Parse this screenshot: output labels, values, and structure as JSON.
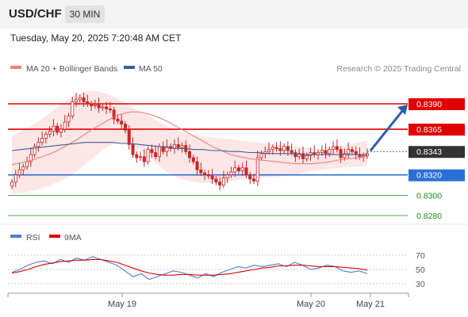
{
  "header": {
    "symbol": "USD/CHF",
    "timeframe": "30 MIN",
    "datetime": "Tuesday, May 20, 2025 7:20:48 AM CET"
  },
  "legend": {
    "ma20_bb": "MA 20 + Bollinger Bands",
    "ma50": "MA 50",
    "credit": "Research © 2025 Trading Central",
    "rsi": "RSI",
    "ma9": "9MA"
  },
  "colors": {
    "resistance": "#e00000",
    "support": "#2b6fd6",
    "target": "#1a8a1a",
    "current": "#333333",
    "ma20": "#f08080",
    "band_fill": "#fde2e2",
    "ma50": "#3a5f9a",
    "candle": "#c62828",
    "rsi": "#4a7fd4",
    "rsi_ma": "#e00000",
    "arrow": "#2a5fa8"
  },
  "chart_data": [
    {
      "type": "candlestick",
      "title": "USD/CHF 30 MIN",
      "x_ticks": [
        "May 19",
        "May 20",
        "May 21"
      ],
      "price_levels": [
        {
          "label": "0.8390",
          "value": 0.839,
          "kind": "resistance"
        },
        {
          "label": "0.8365",
          "value": 0.8365,
          "kind": "resistance"
        },
        {
          "label": "0.8343",
          "value": 0.8343,
          "kind": "current"
        },
        {
          "label": "0.8320",
          "value": 0.832,
          "kind": "support"
        },
        {
          "label": "0.8300",
          "value": 0.83,
          "kind": "target"
        },
        {
          "label": "0.8280",
          "value": 0.828,
          "kind": "target"
        }
      ],
      "arrow": {
        "from": 0.8343,
        "to": 0.839
      },
      "close": [
        0.8313,
        0.832,
        0.8325,
        0.8328,
        0.8333,
        0.834,
        0.8348,
        0.8352,
        0.8356,
        0.836,
        0.8363,
        0.8368,
        0.8362,
        0.8365,
        0.8372,
        0.8378,
        0.8392,
        0.8394,
        0.8396,
        0.8392,
        0.839,
        0.8388,
        0.8389,
        0.8386,
        0.8387,
        0.8385,
        0.8384,
        0.8375,
        0.8373,
        0.837,
        0.8364,
        0.835,
        0.834,
        0.8337,
        0.8338,
        0.8333,
        0.8345,
        0.8342,
        0.8338,
        0.8348,
        0.8343,
        0.8348,
        0.8346,
        0.835,
        0.8347,
        0.8349,
        0.8343,
        0.8337,
        0.8333,
        0.8325,
        0.8322,
        0.832,
        0.8319,
        0.8316,
        0.8313,
        0.831,
        0.8317,
        0.832,
        0.8323,
        0.8327,
        0.8324,
        0.8327,
        0.832,
        0.8316,
        0.8314,
        0.8337,
        0.8341,
        0.8343,
        0.8345,
        0.8347,
        0.8346,
        0.8344,
        0.8348,
        0.8344,
        0.8342,
        0.8338,
        0.8341,
        0.8336,
        0.8339,
        0.8342,
        0.834,
        0.8342,
        0.8344,
        0.8341,
        0.8345,
        0.8348,
        0.8345,
        0.8337,
        0.8341,
        0.8345,
        0.8343,
        0.834,
        0.8338,
        0.8339,
        0.8341
      ],
      "ma20": [
        0.833,
        0.8332,
        0.8334,
        0.8337,
        0.834,
        0.8344,
        0.8349,
        0.8354,
        0.836,
        0.8366,
        0.8371,
        0.8376,
        0.838,
        0.8382,
        0.8382,
        0.838,
        0.8377,
        0.8373,
        0.8368,
        0.8363,
        0.8358,
        0.8353,
        0.8348,
        0.8344,
        0.834,
        0.8338,
        0.8336,
        0.8335,
        0.8334,
        0.8333,
        0.8332,
        0.8331,
        0.8331,
        0.8331,
        0.8332,
        0.8333,
        0.8335,
        0.8336,
        0.8337,
        0.8338
      ],
      "bb_upper": [
        0.8358,
        0.8363,
        0.8368,
        0.8373,
        0.838,
        0.8387,
        0.8394,
        0.8399,
        0.8402,
        0.8403,
        0.8401,
        0.8398,
        0.8393,
        0.8388,
        0.8383,
        0.8378,
        0.8373,
        0.8368,
        0.8364,
        0.8361,
        0.8359,
        0.8358,
        0.8357,
        0.8356,
        0.8355,
        0.8354,
        0.8353,
        0.8352,
        0.8351,
        0.835,
        0.8349,
        0.8348,
        0.8347,
        0.8346,
        0.8345,
        0.8346,
        0.8348,
        0.835,
        0.8352,
        0.8354
      ],
      "bb_lower": [
        0.8302,
        0.8302,
        0.8304,
        0.8306,
        0.8309,
        0.8313,
        0.8317,
        0.8323,
        0.833,
        0.8338,
        0.8345,
        0.835,
        0.8352,
        0.835,
        0.8345,
        0.8338,
        0.833,
        0.8323,
        0.8318,
        0.8315,
        0.8313,
        0.8312,
        0.8312,
        0.8313,
        0.8314,
        0.8315,
        0.8316,
        0.8317,
        0.8318,
        0.8318,
        0.8319,
        0.832,
        0.8322,
        0.8324,
        0.8325,
        0.8326,
        0.8327,
        0.8328,
        0.8328,
        0.8329
      ],
      "ma50": [
        0.8344,
        0.8345,
        0.8346,
        0.8347,
        0.8348,
        0.8349,
        0.835,
        0.8351,
        0.8352,
        0.8352,
        0.8352,
        0.8352,
        0.8351,
        0.8351,
        0.835,
        0.8349,
        0.8348,
        0.8347,
        0.8346,
        0.8346,
        0.8345,
        0.8345,
        0.8344,
        0.8344,
        0.8343,
        0.8343,
        0.8342,
        0.8342,
        0.8341,
        0.8341,
        0.8341,
        0.8341,
        0.834,
        0.834,
        0.834,
        0.834,
        0.834,
        0.834,
        0.834,
        0.834
      ]
    },
    {
      "type": "line",
      "title": "RSI",
      "ylim": [
        30,
        70
      ],
      "y_ticks": [
        70,
        50,
        30
      ],
      "series": [
        {
          "name": "RSI",
          "values": [
            46,
            50,
            56,
            60,
            62,
            58,
            64,
            60,
            66,
            63,
            68,
            64,
            60,
            56,
            48,
            40,
            44,
            36,
            40,
            44,
            48,
            46,
            42,
            38,
            44,
            40,
            46,
            50,
            54,
            52,
            56,
            54,
            56,
            58,
            54,
            60,
            56,
            50,
            52,
            56,
            54,
            48,
            46,
            48,
            44
          ]
        },
        {
          "name": "9MA",
          "values": [
            45,
            47,
            50,
            54,
            57,
            59,
            61,
            62,
            63,
            63,
            64,
            64,
            62,
            60,
            56,
            52,
            48,
            45,
            43,
            42,
            42,
            43,
            43,
            42,
            42,
            42,
            43,
            44,
            46,
            48,
            50,
            52,
            53,
            55,
            55,
            56,
            56,
            55,
            54,
            54,
            54,
            53,
            52,
            51,
            49
          ]
        }
      ]
    }
  ]
}
